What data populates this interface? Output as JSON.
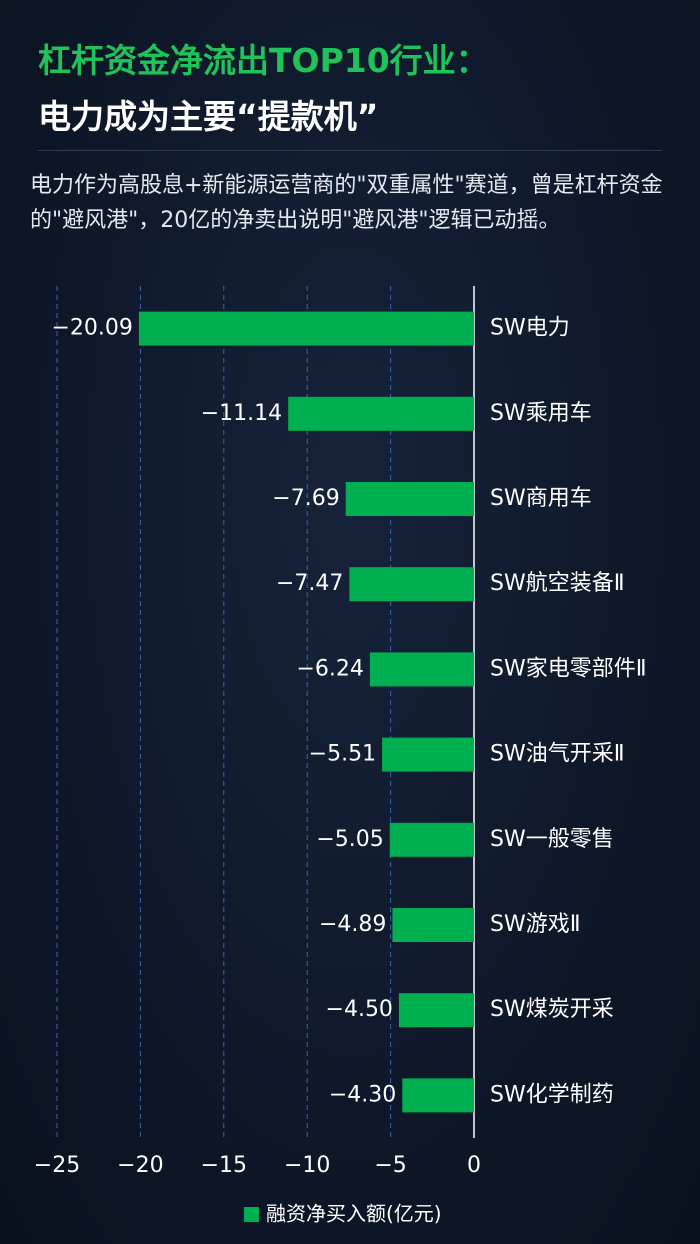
{
  "chart_data": {
    "type": "bar",
    "orientation": "horizontal",
    "title": [
      "杠杆资金净流出TOP10行业：",
      "电力成为主要“提款机”"
    ],
    "description": "电力作为高股息+新能源运营商的\"双重属性\"赛道，曾是杠杆资金的\"避风港\"，20亿的净卖出说明\"避风港\"逻辑已动摇。",
    "categories": [
      "SW电力",
      "SW乘用车",
      "SW商用车",
      "SW航空装备Ⅱ",
      "SW家电零部件Ⅱ",
      "SW油气开采Ⅱ",
      "SW一般零售",
      "SW游戏Ⅱ",
      "SW煤炭开采",
      "SW化学制药"
    ],
    "series": [
      {
        "name": "融资净买入额(亿元)",
        "color": "#00b050",
        "values": [
          -20.09,
          -11.14,
          -7.69,
          -7.47,
          -6.24,
          -5.51,
          -5.05,
          -4.89,
          -4.5,
          -4.3
        ],
        "value_labels": [
          "−20.09",
          "−11.14",
          "−7.69",
          "−7.47",
          "−6.24",
          "−5.51",
          "−5.05",
          "−4.89",
          "−4.50",
          "−4.30"
        ]
      }
    ],
    "xlim": [
      -25,
      0
    ],
    "xticks": [
      {
        "value": -25,
        "label": "−25"
      },
      {
        "value": -20,
        "label": "−20"
      },
      {
        "value": -15,
        "label": "−15"
      },
      {
        "value": -10,
        "label": "−10"
      },
      {
        "value": -5,
        "label": "−5"
      },
      0
    ],
    "grid": true,
    "legend": "bottom"
  }
}
